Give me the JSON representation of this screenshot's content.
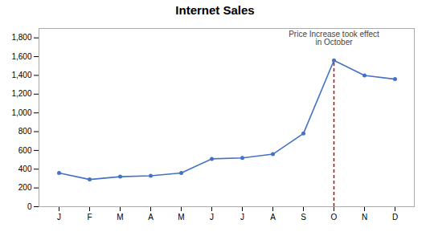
{
  "chart_data": {
    "type": "line",
    "title": "Internet Sales",
    "categories": [
      "J",
      "F",
      "M",
      "A",
      "M",
      "J",
      "J",
      "A",
      "S",
      "O",
      "N",
      "D"
    ],
    "values": [
      360,
      290,
      320,
      330,
      360,
      510,
      520,
      560,
      780,
      1560,
      1400,
      1360
    ],
    "color": "#4472C4",
    "marker": "circle",
    "ylim": [
      0,
      1900
    ],
    "yticks": [
      0,
      200,
      400,
      600,
      800,
      {
        "value": 1000,
        "label": "1,000"
      },
      {
        "value": 1200,
        "label": "1,200"
      },
      {
        "value": 1400,
        "label": "1,400"
      },
      {
        "value": 1600,
        "label": "1,600"
      },
      {
        "value": 1800,
        "label": "1,800"
      }
    ],
    "grid": false,
    "annotations": [
      {
        "text": "Price Increase took effect\nin October",
        "index": 9,
        "color": "#444444",
        "line_color": "#CC0000",
        "line_style": "dashed"
      }
    ]
  }
}
